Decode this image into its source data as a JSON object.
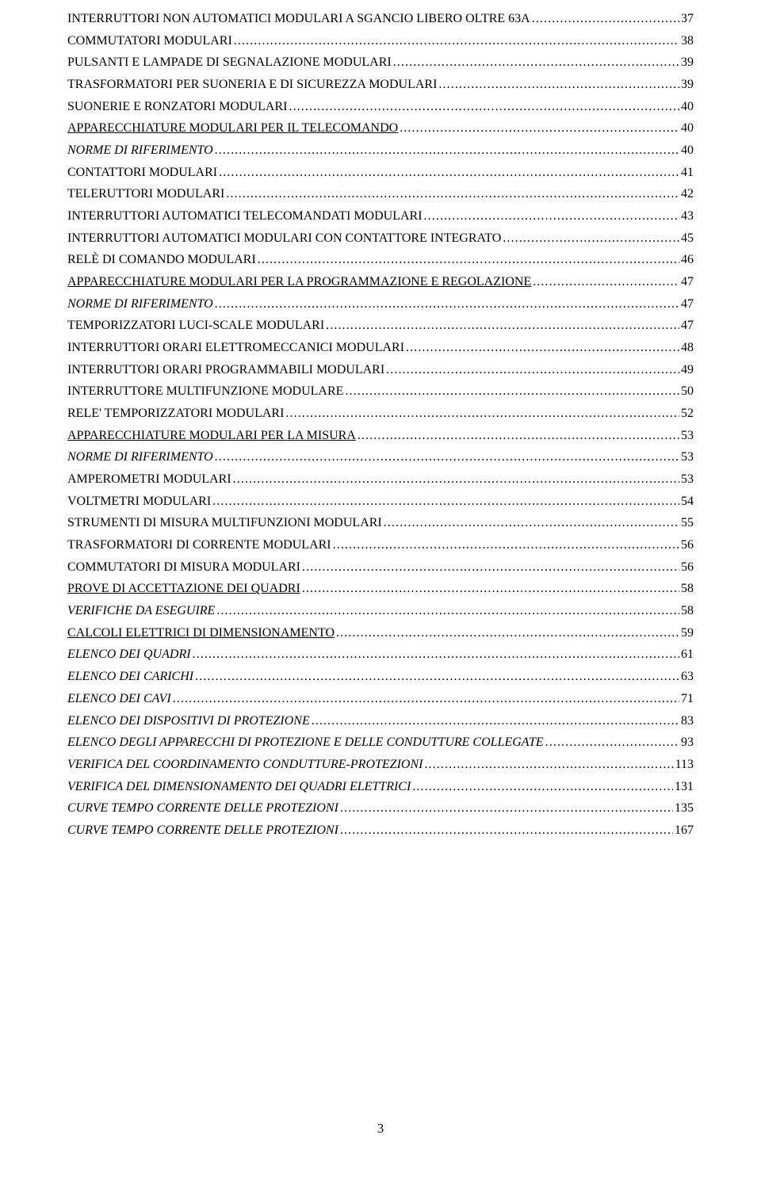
{
  "page_number": "3",
  "toc": [
    {
      "title": "INTERRUTTORI NON AUTOMATICI MODULARI A SGANCIO LIBERO OLTRE 63A",
      "page": "37",
      "italic": false,
      "underline": false
    },
    {
      "title": "COMMUTATORI MODULARI",
      "page": "38",
      "italic": false,
      "underline": false
    },
    {
      "title": "PULSANTI E LAMPADE DI SEGNALAZIONE MODULARI",
      "page": "39",
      "italic": false,
      "underline": false
    },
    {
      "title": "TRASFORMATORI PER SUONERIA E DI SICUREZZA MODULARI",
      "page": "39",
      "italic": false,
      "underline": false
    },
    {
      "title": "SUONERIE E RONZATORI MODULARI",
      "page": "40",
      "italic": false,
      "underline": false
    },
    {
      "title": "APPARECCHIATURE MODULARI PER IL TELECOMANDO",
      "page": "40",
      "italic": false,
      "underline": true
    },
    {
      "title": "NORME DI RIFERIMENTO",
      "page": "40",
      "italic": true,
      "underline": false
    },
    {
      "title": "CONTATTORI MODULARI",
      "page": "41",
      "italic": false,
      "underline": false
    },
    {
      "title": "TELERUTTORI MODULARI",
      "page": "42",
      "italic": false,
      "underline": false
    },
    {
      "title": "INTERRUTTORI AUTOMATICI TELECOMANDATI MODULARI",
      "page": "43",
      "italic": false,
      "underline": false
    },
    {
      "title": "INTERRUTTORI AUTOMATICI MODULARI CON CONTATTORE INTEGRATO",
      "page": "45",
      "italic": false,
      "underline": false
    },
    {
      "title": "RELÈ DI COMANDO MODULARI",
      "page": "46",
      "italic": false,
      "underline": false
    },
    {
      "title": "APPARECCHIATURE MODULARI PER LA PROGRAMMAZIONE E REGOLAZIONE",
      "page": "47",
      "italic": false,
      "underline": true
    },
    {
      "title": "NORME DI RIFERIMENTO",
      "page": "47",
      "italic": true,
      "underline": false
    },
    {
      "title": "TEMPORIZZATORI LUCI-SCALE MODULARI",
      "page": "47",
      "italic": false,
      "underline": false
    },
    {
      "title": "INTERRUTTORI ORARI ELETTROMECCANICI MODULARI",
      "page": "48",
      "italic": false,
      "underline": false
    },
    {
      "title": "INTERRUTTORI ORARI PROGRAMMABILI MODULARI",
      "page": "49",
      "italic": false,
      "underline": false
    },
    {
      "title": "INTERRUTTORE MULTIFUNZIONE MODULARE",
      "page": "50",
      "italic": false,
      "underline": false
    },
    {
      "title": "RELE' TEMPORIZZATORI MODULARI",
      "page": "52",
      "italic": false,
      "underline": false
    },
    {
      "title": "APPARECCHIATURE MODULARI PER LA MISURA",
      "page": "53",
      "italic": false,
      "underline": true
    },
    {
      "title": "NORME DI RIFERIMENTO",
      "page": "53",
      "italic": true,
      "underline": false
    },
    {
      "title": "AMPEROMETRI MODULARI",
      "page": "53",
      "italic": false,
      "underline": false
    },
    {
      "title": "VOLTMETRI MODULARI",
      "page": "54",
      "italic": false,
      "underline": false
    },
    {
      "title": "STRUMENTI DI MISURA MULTIFUNZIONI MODULARI",
      "page": "55",
      "italic": false,
      "underline": false
    },
    {
      "title": "TRASFORMATORI DI CORRENTE MODULARI",
      "page": "56",
      "italic": false,
      "underline": false
    },
    {
      "title": "COMMUTATORI DI MISURA MODULARI",
      "page": "56",
      "italic": false,
      "underline": false
    },
    {
      "title": "PROVE DI ACCETTAZIONE DEI QUADRI",
      "page": "58",
      "italic": false,
      "underline": true
    },
    {
      "title": "VERIFICHE DA ESEGUIRE",
      "page": "58",
      "italic": true,
      "underline": false
    },
    {
      "title": "CALCOLI ELETTRICI DI DIMENSIONAMENTO",
      "page": "59",
      "italic": false,
      "underline": true
    },
    {
      "title": "ELENCO DEI QUADRI",
      "page": "61",
      "italic": true,
      "underline": false
    },
    {
      "title": "ELENCO DEI CARICHI",
      "page": "63",
      "italic": true,
      "underline": false
    },
    {
      "title": "ELENCO DEI CAVI",
      "page": "71",
      "italic": true,
      "underline": false
    },
    {
      "title": "ELENCO DEI DISPOSITIVI DI PROTEZIONE",
      "page": "83",
      "italic": true,
      "underline": false
    },
    {
      "title": "ELENCO DEGLI APPARECCHI DI PROTEZIONE E DELLE CONDUTTURE COLLEGATE",
      "page": "93",
      "italic": true,
      "underline": false
    },
    {
      "title": "VERIFICA DEL COORDINAMENTO CONDUTTURE-PROTEZIONI",
      "page": "113",
      "italic": true,
      "underline": false
    },
    {
      "title": "VERIFICA DEL DIMENSIONAMENTO DEI QUADRI ELETTRICI",
      "page": "131",
      "italic": true,
      "underline": false
    },
    {
      "title": "CURVE TEMPO CORRENTE DELLE PROTEZIONI",
      "page": "135",
      "italic": true,
      "underline": false
    },
    {
      "title": "CURVE TEMPO CORRENTE DELLE PROTEZIONI",
      "page": "167",
      "italic": true,
      "underline": false
    }
  ]
}
